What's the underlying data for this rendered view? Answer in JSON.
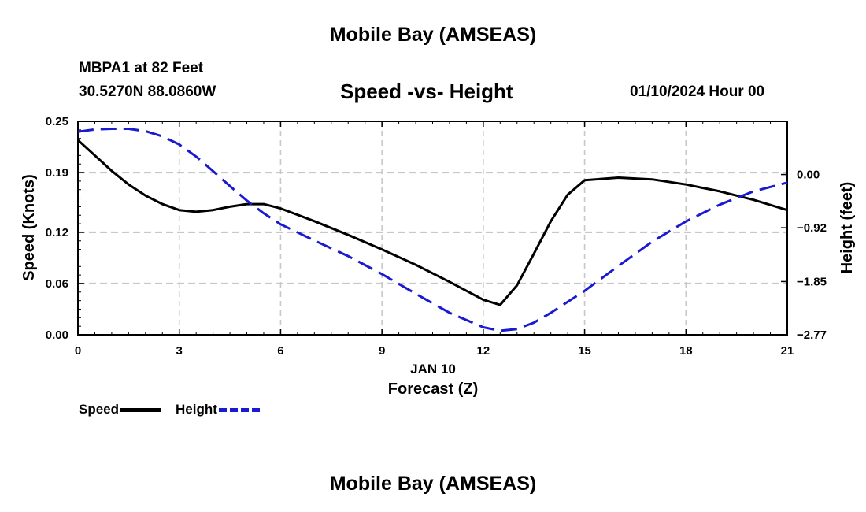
{
  "page": {
    "top_title": "Mobile Bay (AMSEAS)",
    "bottom_title": "Mobile Bay (AMSEAS)",
    "station": "MBPA1 at 82 Feet",
    "coords": "30.5270N  88.0860W",
    "datetime": "01/10/2024 Hour 00"
  },
  "colors": {
    "speed": "#000000",
    "height": "#1a1ad0",
    "grid": "#c8c8c8"
  },
  "chart_data": {
    "type": "line",
    "title": "Speed -vs- Height",
    "xlabel": "Forecast (Z)",
    "xdate": "JAN 10",
    "ylabel": "Speed (Knots)",
    "y2label": "Height (feet)",
    "xlim": [
      0,
      21
    ],
    "ylim": [
      0,
      0.25
    ],
    "y2lim": [
      -2.77,
      0.92
    ],
    "xticks": [
      "0",
      "3",
      "6",
      "9",
      "12",
      "15",
      "18",
      "21"
    ],
    "yticks": [
      "0.00",
      "0.06",
      "0.12",
      "0.19",
      "0.25"
    ],
    "y2ticks": [
      "-2.77",
      "-1.85",
      "-0.92",
      "0.00"
    ],
    "series": [
      {
        "name": "Speed",
        "axis": "left",
        "x": [
          0,
          0.5,
          1,
          1.5,
          2,
          2.5,
          3,
          3.5,
          4,
          4.5,
          5,
          5.5,
          6,
          7,
          8,
          9,
          10,
          11,
          12,
          12.5,
          13,
          13.5,
          14,
          14.5,
          15,
          16,
          17,
          18,
          19,
          20,
          21
        ],
        "values": [
          0.228,
          0.21,
          0.192,
          0.176,
          0.163,
          0.153,
          0.146,
          0.144,
          0.146,
          0.15,
          0.153,
          0.153,
          0.148,
          0.133,
          0.117,
          0.1,
          0.082,
          0.062,
          0.041,
          0.035,
          0.058,
          0.095,
          0.133,
          0.164,
          0.181,
          0.184,
          0.182,
          0.176,
          0.168,
          0.158,
          0.146
        ]
      },
      {
        "name": "Height",
        "axis": "right",
        "x": [
          0,
          0.5,
          1,
          1.5,
          2,
          2.5,
          3,
          3.5,
          4,
          4.5,
          5,
          5.5,
          6,
          7,
          8,
          9,
          10,
          11,
          12,
          12.5,
          13,
          13.5,
          14,
          15,
          16,
          17,
          18,
          19,
          20,
          21
        ],
        "values": [
          0.74,
          0.78,
          0.79,
          0.79,
          0.75,
          0.66,
          0.52,
          0.31,
          0.06,
          -0.2,
          -0.45,
          -0.67,
          -0.86,
          -1.14,
          -1.41,
          -1.72,
          -2.06,
          -2.39,
          -2.64,
          -2.7,
          -2.67,
          -2.56,
          -2.39,
          -2.01,
          -1.58,
          -1.16,
          -0.81,
          -0.52,
          -0.29,
          -0.14
        ]
      }
    ],
    "legend": [
      "Speed",
      "Height"
    ]
  }
}
